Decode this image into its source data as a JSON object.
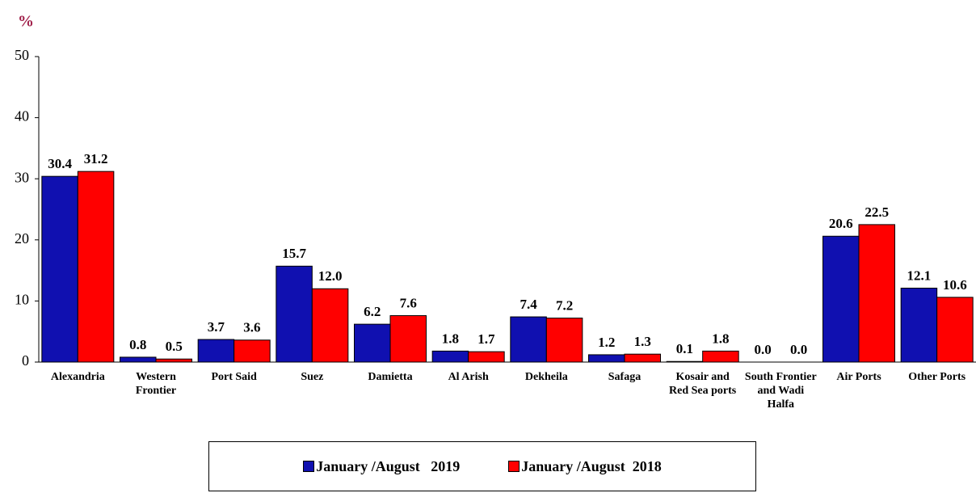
{
  "chart_data": {
    "type": "bar",
    "y_unit_label": "%",
    "categories": [
      "Alexandria",
      "Western Frontier",
      "Port Said",
      "Suez",
      "Damietta",
      "Al Arish",
      "Dekheila",
      "Safaga",
      "Kosair and Red Sea ports",
      "South Frontier and Wadi Halfa",
      "Air Ports",
      "Other Ports"
    ],
    "series": [
      {
        "name": "January /August   2019",
        "color": "#1010b0",
        "values": [
          30.4,
          0.8,
          3.7,
          15.7,
          6.2,
          1.8,
          7.4,
          1.2,
          0.1,
          0,
          20.6,
          12.1
        ],
        "value_labels": [
          "30.4",
          "0.8",
          "3.7",
          "15.7",
          "6.2",
          "1.8",
          "7.4",
          "1.2",
          "0.1",
          "0.0",
          "20.6",
          "12.1"
        ]
      },
      {
        "name": "January /August  2018",
        "color": "#ff0000",
        "values": [
          31.2,
          0.5,
          3.6,
          12,
          7.6,
          1.7,
          7.2,
          1.3,
          1.8,
          0,
          22.5,
          10.6
        ],
        "value_labels": [
          "31.2",
          "0.5",
          "3.6",
          "12.0",
          "7.6",
          "1.7",
          "7.2",
          "1.3",
          "1.8",
          "0.0",
          "22.5",
          "10.6"
        ]
      }
    ],
    "ylim": [
      0,
      50
    ],
    "yticks": [
      0,
      10,
      20,
      30,
      40,
      50
    ],
    "grid": false,
    "legend": "bottom"
  }
}
